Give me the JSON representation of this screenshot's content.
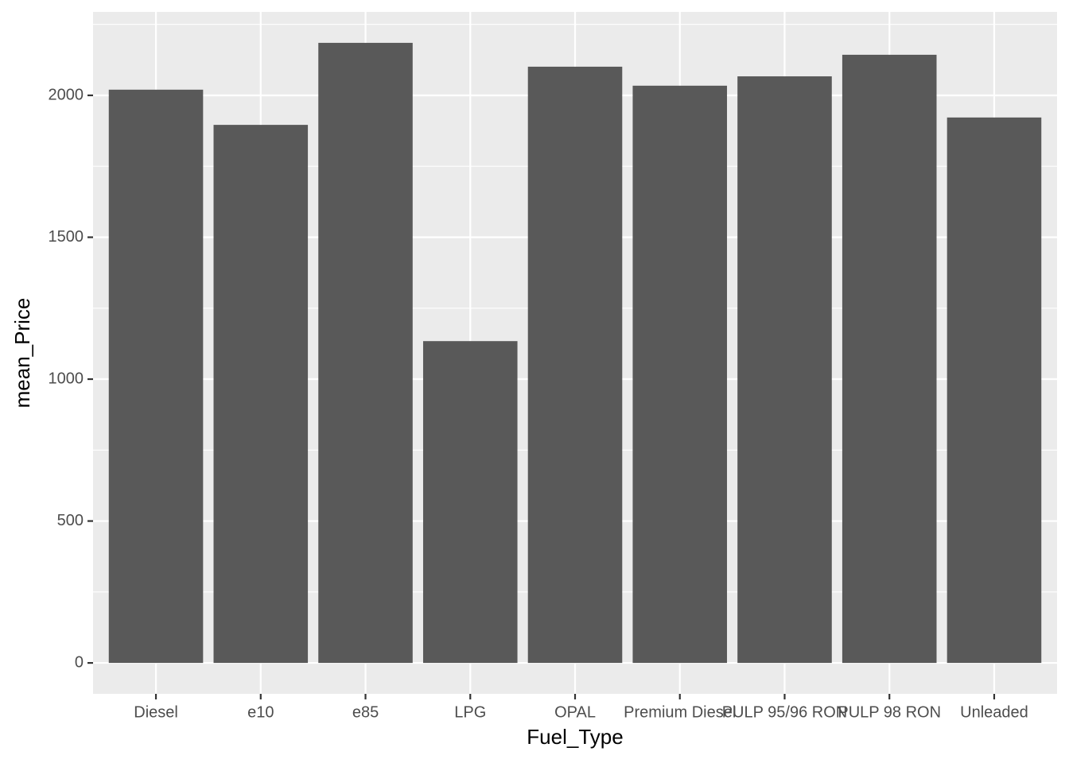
{
  "chart_data": {
    "type": "bar",
    "x_label": "Fuel_Type",
    "y_label": "mean_Price",
    "categories": [
      "Diesel",
      "e10",
      "e85",
      "LPG",
      "OPAL",
      "Premium Diesel",
      "PULP 95/96 RON",
      "PULP 98 RON",
      "Unleaded"
    ],
    "values": [
      2020,
      1896,
      2185,
      1134,
      2101,
      2034,
      2067,
      2143,
      1922
    ],
    "color": "#595959",
    "ylim": [
      -109,
      2294
    ],
    "yticks": [
      0,
      500,
      1000,
      1500,
      2000
    ],
    "yticks_minor": [
      250,
      750,
      1250,
      1750,
      2250
    ],
    "grid": true
  }
}
